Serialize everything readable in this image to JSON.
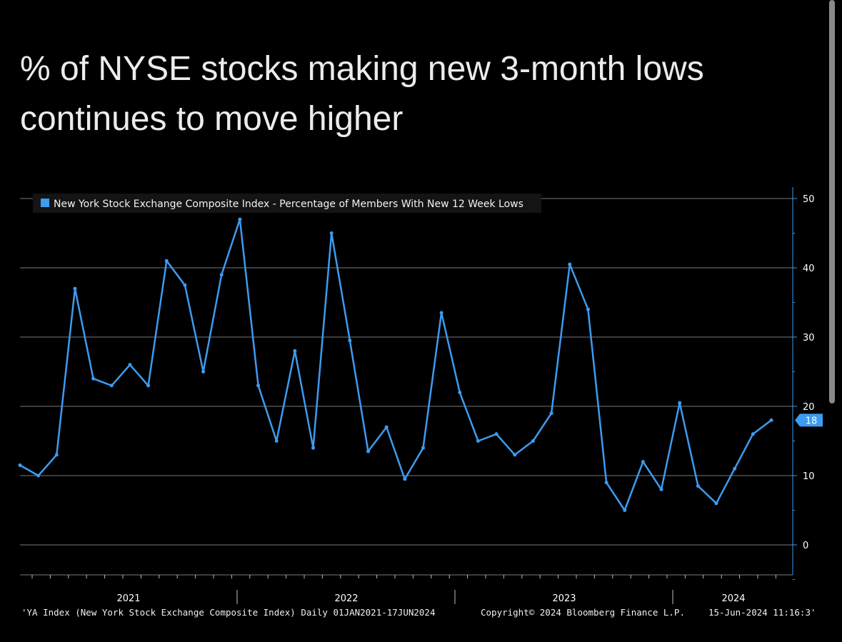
{
  "post": {
    "title": "% of NYSE stocks making new 3-month lows continues to move higher"
  },
  "colors": {
    "background": "#000000",
    "series": "#3d9bf0",
    "grid": "#7a7a7a",
    "legend_bg": "#141414"
  },
  "chart_data": {
    "type": "line",
    "series": [
      {
        "name": "New York Stock Exchange Composite Index - Percentage of Members With New 12 Week Lows",
        "x": [
          "2021-01",
          "2021-02",
          "2021-03",
          "2021-04",
          "2021-05",
          "2021-06",
          "2021-07",
          "2021-08",
          "2021-09",
          "2021-10",
          "2021-11",
          "2021-12",
          "2022-01",
          "2022-02",
          "2022-03",
          "2022-04",
          "2022-05",
          "2022-06",
          "2022-07",
          "2022-08",
          "2022-09",
          "2022-10",
          "2022-11",
          "2022-12",
          "2023-01",
          "2023-02",
          "2023-03",
          "2023-04",
          "2023-05",
          "2023-06",
          "2023-07",
          "2023-08",
          "2023-09",
          "2023-10",
          "2023-11",
          "2023-12",
          "2024-01",
          "2024-02",
          "2024-03",
          "2024-04",
          "2024-05",
          "2024-06"
        ],
        "values": [
          11.5,
          10,
          13,
          37,
          24,
          23,
          26,
          23,
          41,
          37.5,
          25,
          39,
          47,
          23,
          15,
          28,
          14,
          45,
          29.5,
          13.5,
          17,
          9.5,
          14,
          33.5,
          22,
          15,
          16,
          13,
          15,
          19,
          40.5,
          34,
          9,
          5,
          12,
          8,
          20.5,
          8.5,
          6,
          11,
          16,
          18
        ]
      }
    ],
    "x_tick_labels": [
      "2021",
      "2022",
      "2023",
      "2024"
    ],
    "y_ticks": [
      0,
      10,
      20,
      30,
      40,
      50
    ],
    "ylim": [
      -4,
      51
    ],
    "last_value": "18",
    "grid": true,
    "legend_position": "top-left",
    "y_axis_side": "right"
  },
  "footer": {
    "source": "'YA Index (New York Stock Exchange Composite Index)  Daily 01JAN2021-17JUN2024",
    "copyright": "Copyright© 2024 Bloomberg Finance L.P.",
    "timestamp": "15-Jun-2024 11:16:3'"
  }
}
